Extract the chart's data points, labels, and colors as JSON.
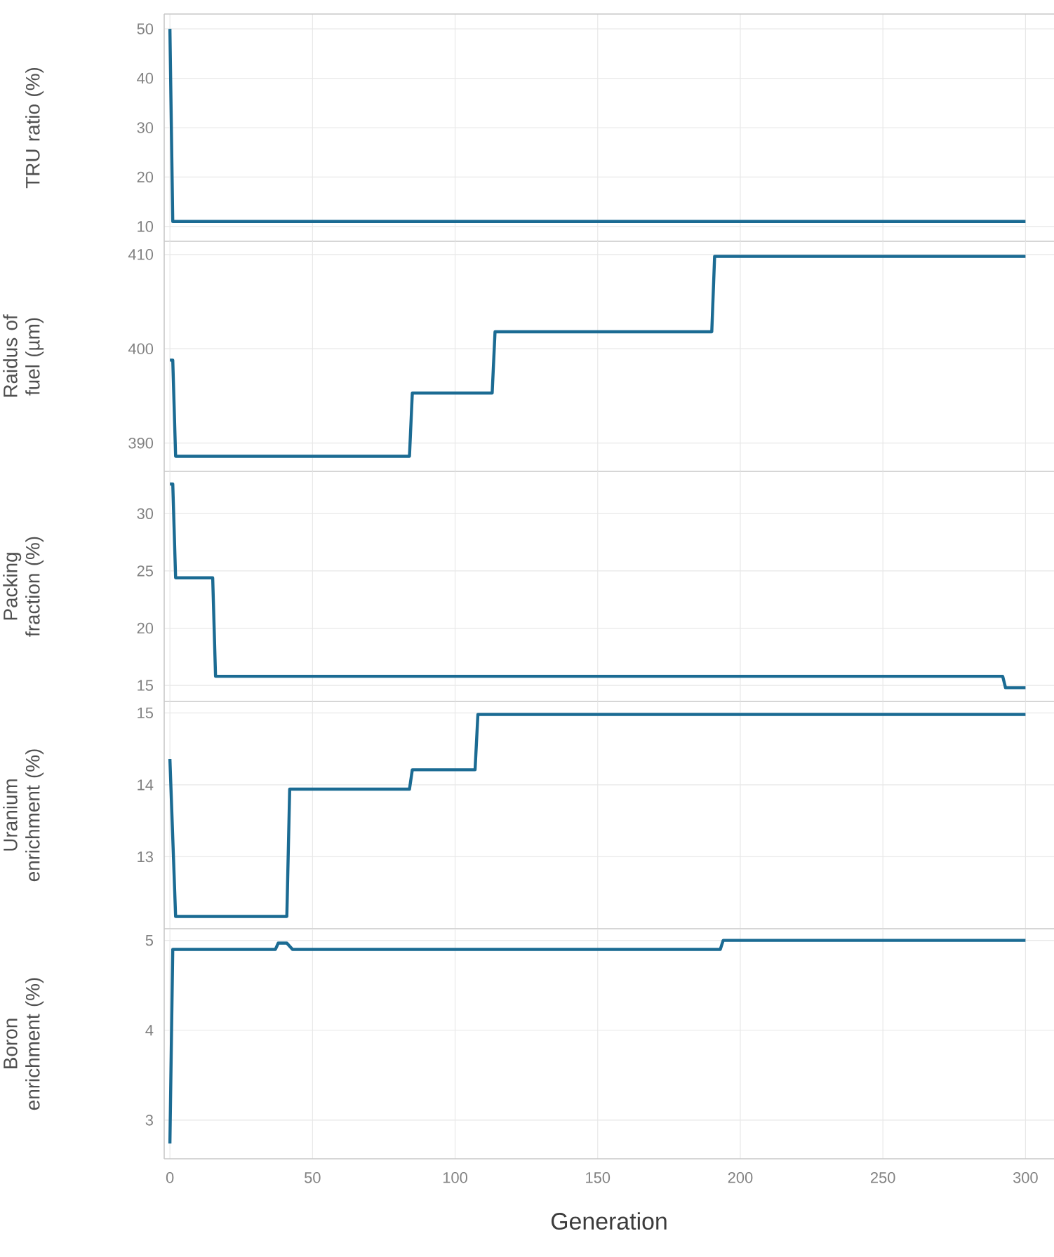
{
  "chart_data": [
    {
      "type": "line",
      "ylabel": "TRU ratio (%)",
      "color": "#1b6b93",
      "grid": true,
      "tick_labels": "y",
      "x": [
        0,
        1,
        300
      ],
      "values": [
        50,
        11,
        11
      ],
      "xlim": [
        -2,
        310
      ],
      "xticks": [
        0,
        50,
        100,
        150,
        200,
        250,
        300
      ],
      "ylim": [
        7,
        53
      ],
      "yticks": [
        10,
        20,
        30,
        40,
        50
      ]
    },
    {
      "type": "line",
      "ylabel": "Raidus of fuel (µm)",
      "color": "#1b6b93",
      "grid": true,
      "tick_labels": "y",
      "x": [
        0,
        1,
        2,
        84,
        85,
        113,
        114,
        190,
        191,
        300
      ],
      "values": [
        398.8,
        398.8,
        388.6,
        388.6,
        395.3,
        395.3,
        401.8,
        401.8,
        409.8,
        409.8
      ],
      "xlim": [
        -2,
        310
      ],
      "xticks": [
        0,
        50,
        100,
        150,
        200,
        250,
        300
      ],
      "ylim": [
        387,
        411.4
      ],
      "yticks": [
        390,
        400,
        410
      ]
    },
    {
      "type": "line",
      "ylabel": "Packing fraction (%)",
      "color": "#1b6b93",
      "grid": true,
      "tick_labels": "y",
      "x": [
        0,
        1,
        2,
        15,
        16,
        292,
        293,
        300
      ],
      "values": [
        32.6,
        32.6,
        24.4,
        24.4,
        15.8,
        15.8,
        14.8,
        14.8
      ],
      "xlim": [
        -2,
        310
      ],
      "xticks": [
        0,
        50,
        100,
        150,
        200,
        250,
        300
      ],
      "ylim": [
        13.6,
        33.7
      ],
      "yticks": [
        15,
        20,
        25,
        30
      ]
    },
    {
      "type": "line",
      "ylabel": "Uranium enrichment (%)",
      "color": "#1b6b93",
      "grid": true,
      "tick_labels": "y",
      "x": [
        0,
        2,
        41,
        42,
        84,
        85,
        107,
        108,
        300
      ],
      "values": [
        14.36,
        12.17,
        12.17,
        13.94,
        13.94,
        14.21,
        14.21,
        14.98,
        14.98
      ],
      "xlim": [
        -2,
        310
      ],
      "xticks": [
        0,
        50,
        100,
        150,
        200,
        250,
        300
      ],
      "ylim": [
        12.0,
        15.16
      ],
      "yticks": [
        13,
        14,
        15
      ]
    },
    {
      "type": "line",
      "ylabel": "Boron enrichment (%)",
      "xlabel": "Generation",
      "color": "#1b6b93",
      "grid": true,
      "x": [
        0,
        1,
        37,
        38,
        41,
        43,
        193,
        194,
        300
      ],
      "values": [
        2.74,
        4.9,
        4.9,
        4.97,
        4.97,
        4.9,
        4.9,
        5.0,
        5.0
      ],
      "xlim": [
        -2,
        310
      ],
      "xticks": [
        0,
        50,
        100,
        150,
        200,
        250,
        300
      ],
      "ylim": [
        2.57,
        5.13
      ],
      "yticks": [
        3,
        4,
        5
      ]
    }
  ]
}
